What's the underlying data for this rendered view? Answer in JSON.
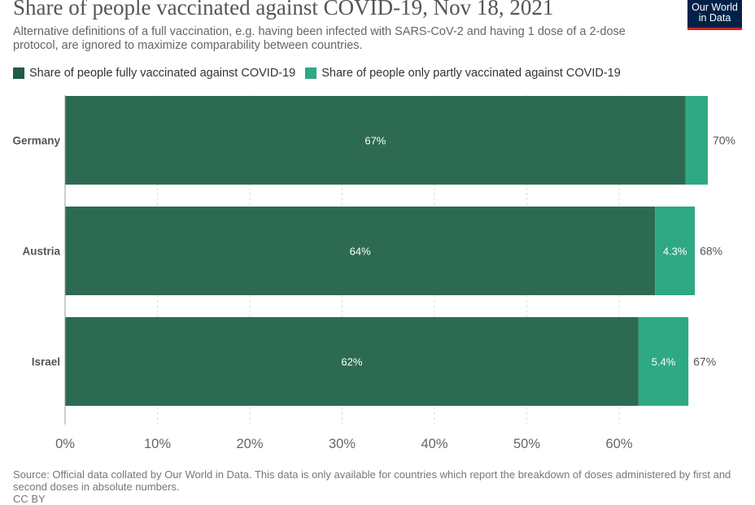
{
  "header": {
    "title": "Share of people vaccinated against COVID-19, Nov 18, 2021",
    "subtitle": "Alternative definitions of a full vaccination, e.g. having been infected with SARS-CoV-2 and having 1 dose of a 2-dose protocol, are ignored to maximize comparability between countries.",
    "logo_line1": "Our World",
    "logo_line2": "in Data"
  },
  "colors": {
    "full": "#2c6b52",
    "partial": "#2fa884",
    "axis": "#999999",
    "grid": "#dddddd",
    "logo_bg": "#002147",
    "logo_accent": "#ce261e"
  },
  "chart_data": {
    "type": "bar",
    "orientation": "horizontal",
    "stacked": true,
    "title": "Share of people vaccinated against COVID-19, Nov 18, 2021",
    "categories": [
      "Germany",
      "Austria",
      "Israel"
    ],
    "series": [
      {
        "name": "Share of people fully vaccinated against COVID-19",
        "values": [
          67.2,
          63.9,
          62.1
        ],
        "labels": [
          "67%",
          "64%",
          "62%"
        ]
      },
      {
        "name": "Share of people only partly vaccinated against COVID-19",
        "values": [
          2.4,
          4.3,
          5.4
        ],
        "labels": [
          "",
          "4.3%",
          "5.4%"
        ]
      }
    ],
    "totals": [
      "70%",
      "68%",
      "67%"
    ],
    "xlim": [
      0,
      70
    ],
    "xticks": [
      0,
      10,
      20,
      30,
      40,
      50,
      60
    ],
    "xtick_labels": [
      "0%",
      "10%",
      "20%",
      "30%",
      "40%",
      "50%",
      "60%"
    ],
    "xlabel": "",
    "ylabel": "",
    "grid": true,
    "legend": "top-left"
  },
  "footer": {
    "source": "Source: Official data collated by Our World in Data. This data is only available for countries which report the breakdown of doses administered by first and second doses in absolute numbers.",
    "license": "CC BY"
  }
}
